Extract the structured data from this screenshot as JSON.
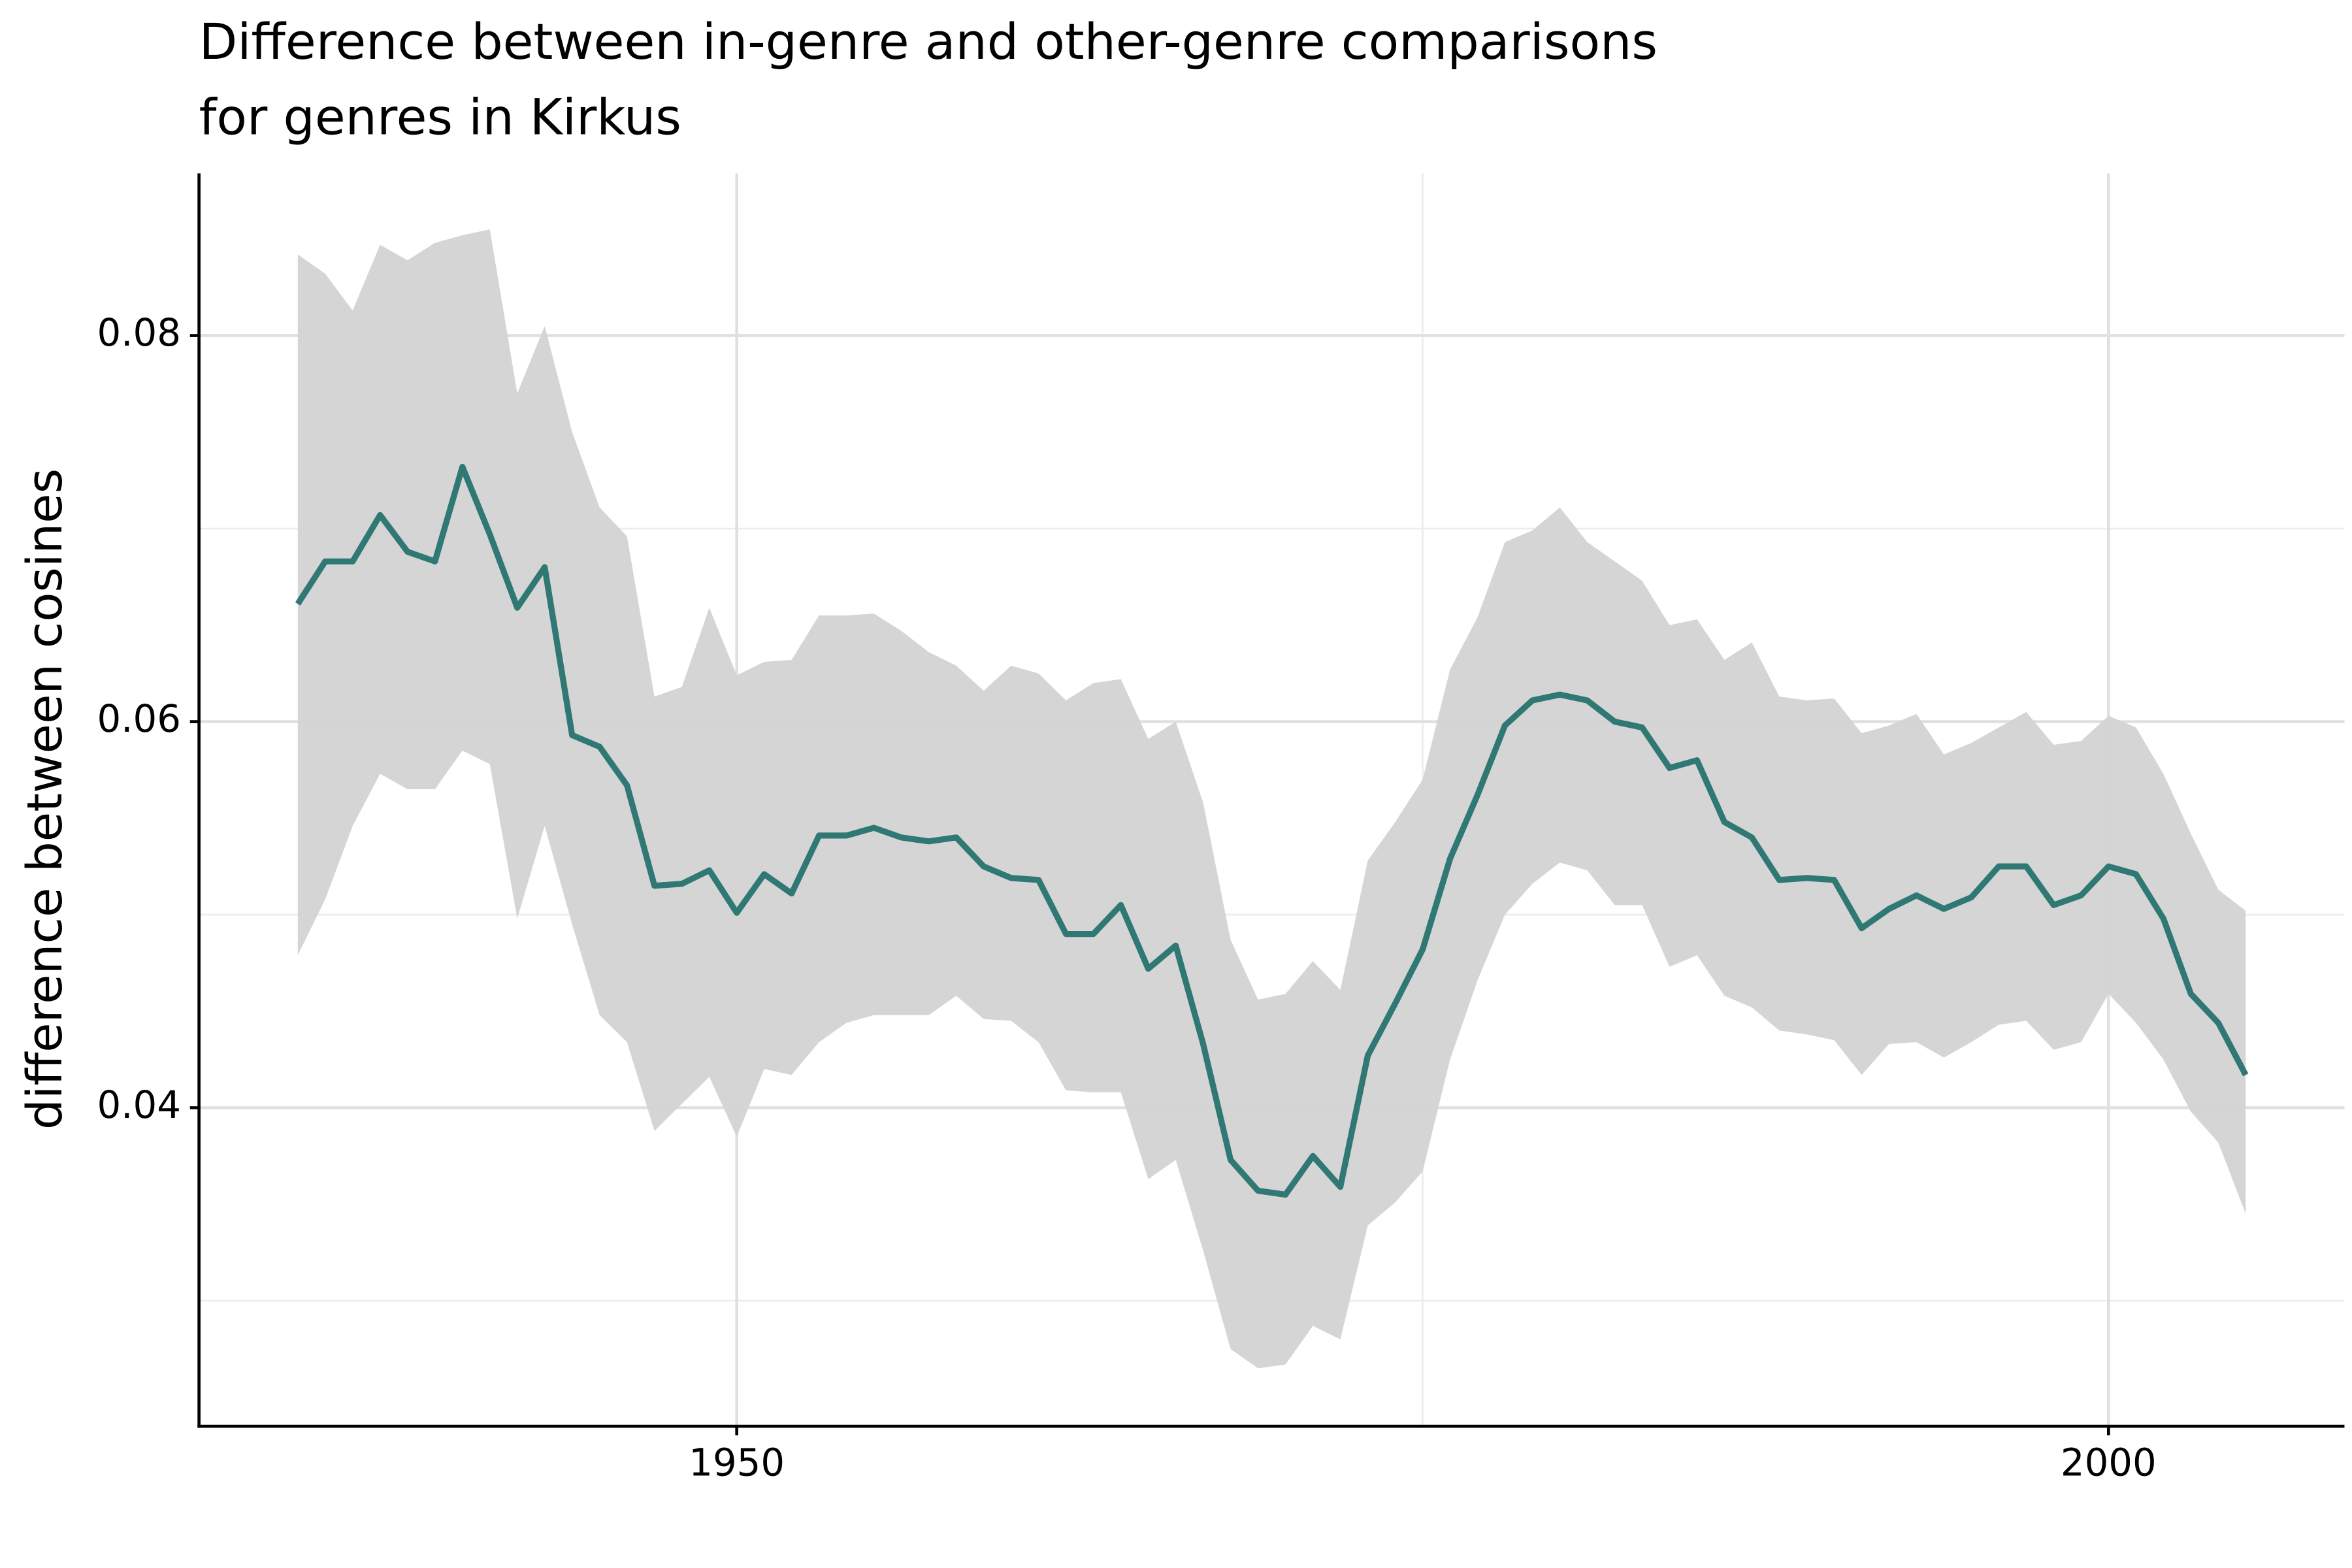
{
  "chart_data": {
    "type": "line_band",
    "title": [
      "Difference between in-genre and other-genre comparisons",
      "for genres in Kirkus"
    ],
    "ylabel": "difference between cosines",
    "x": [
      1934,
      1935,
      1936,
      1937,
      1938,
      1939,
      1940,
      1941,
      1942,
      1943,
      1944,
      1945,
      1946,
      1947,
      1948,
      1949,
      1950,
      1951,
      1952,
      1953,
      1954,
      1955,
      1956,
      1957,
      1958,
      1959,
      1960,
      1961,
      1962,
      1963,
      1964,
      1965,
      1966,
      1967,
      1968,
      1969,
      1970,
      1971,
      1972,
      1973,
      1974,
      1975,
      1976,
      1977,
      1978,
      1979,
      1980,
      1981,
      1982,
      1983,
      1984,
      1985,
      1986,
      1987,
      1988,
      1989,
      1990,
      1991,
      1992,
      1993,
      1994,
      1995,
      1996,
      1997,
      1998,
      1999,
      2000,
      2001,
      2002,
      2003,
      2004,
      2005
    ],
    "series": [
      {
        "color": "#2f7874",
        "band_color": "#d3d3d3",
        "values": [
          0.0661,
          0.0683,
          0.0683,
          0.0707,
          0.0688,
          0.0683,
          0.0732,
          0.0697,
          0.0659,
          0.068,
          0.0593,
          0.0587,
          0.0567,
          0.0515,
          0.0516,
          0.0523,
          0.0501,
          0.0521,
          0.0511,
          0.0541,
          0.0541,
          0.0545,
          0.054,
          0.0538,
          0.054,
          0.0525,
          0.0519,
          0.0518,
          0.049,
          0.049,
          0.0505,
          0.0472,
          0.0484,
          0.0433,
          0.0373,
          0.0357,
          0.0355,
          0.0375,
          0.0359,
          0.0427,
          0.0454,
          0.0482,
          0.0529,
          0.0562,
          0.0598,
          0.0611,
          0.0614,
          0.0611,
          0.06,
          0.0597,
          0.0576,
          0.058,
          0.0548,
          0.054,
          0.0518,
          0.0519,
          0.0518,
          0.0493,
          0.0503,
          0.051,
          0.0503,
          0.0509,
          0.0525,
          0.0525,
          0.0505,
          0.051,
          0.0525,
          0.0521,
          0.0498,
          0.0459,
          0.0444,
          0.0417
        ],
        "upper": [
          0.0842,
          0.0832,
          0.0813,
          0.0847,
          0.0839,
          0.0848,
          0.0852,
          0.0855,
          0.077,
          0.0805,
          0.075,
          0.0711,
          0.0696,
          0.0613,
          0.0618,
          0.0659,
          0.0624,
          0.0631,
          0.0632,
          0.0655,
          0.0655,
          0.0656,
          0.0647,
          0.0636,
          0.0629,
          0.0616,
          0.0629,
          0.0625,
          0.0611,
          0.062,
          0.0622,
          0.0591,
          0.06,
          0.0558,
          0.0487,
          0.0456,
          0.0459,
          0.0476,
          0.0461,
          0.0528,
          0.0548,
          0.057,
          0.0627,
          0.0654,
          0.0693,
          0.0699,
          0.0711,
          0.0693,
          0.0683,
          0.0673,
          0.065,
          0.0653,
          0.0632,
          0.0641,
          0.0613,
          0.0611,
          0.0612,
          0.0594,
          0.0598,
          0.0604,
          0.0583,
          0.0589,
          0.0597,
          0.0605,
          0.0588,
          0.059,
          0.0603,
          0.0597,
          0.0573,
          0.0542,
          0.0513,
          0.0502
        ],
        "lower": [
          0.0479,
          0.0508,
          0.0546,
          0.0573,
          0.0565,
          0.0565,
          0.0585,
          0.0578,
          0.0498,
          0.0546,
          0.0495,
          0.0448,
          0.0434,
          0.0388,
          0.0402,
          0.0416,
          0.0385,
          0.042,
          0.0417,
          0.0434,
          0.0444,
          0.0448,
          0.0448,
          0.0448,
          0.0458,
          0.0446,
          0.0445,
          0.0434,
          0.0409,
          0.0408,
          0.0408,
          0.0363,
          0.0373,
          0.0326,
          0.0275,
          0.0265,
          0.0267,
          0.0287,
          0.028,
          0.0339,
          0.0351,
          0.0367,
          0.0425,
          0.0466,
          0.05,
          0.0516,
          0.0527,
          0.0523,
          0.0505,
          0.0505,
          0.0473,
          0.0479,
          0.0458,
          0.0452,
          0.044,
          0.0438,
          0.0435,
          0.0417,
          0.0433,
          0.0434,
          0.0426,
          0.0434,
          0.0443,
          0.0445,
          0.043,
          0.0434,
          0.0459,
          0.0444,
          0.0425,
          0.0398,
          0.0382,
          0.0345
        ]
      }
    ],
    "xlim": [
      1930.4,
      2008.6
    ],
    "xticks": [
      1950,
      2000
    ],
    "xticks_minor": [
      1975
    ],
    "ylim": [
      0.0235,
      0.0884
    ],
    "yticks": [
      0.04,
      0.06,
      0.08
    ],
    "yticks_minor": [
      0.03,
      0.05,
      0.07
    ],
    "grid": true
  }
}
